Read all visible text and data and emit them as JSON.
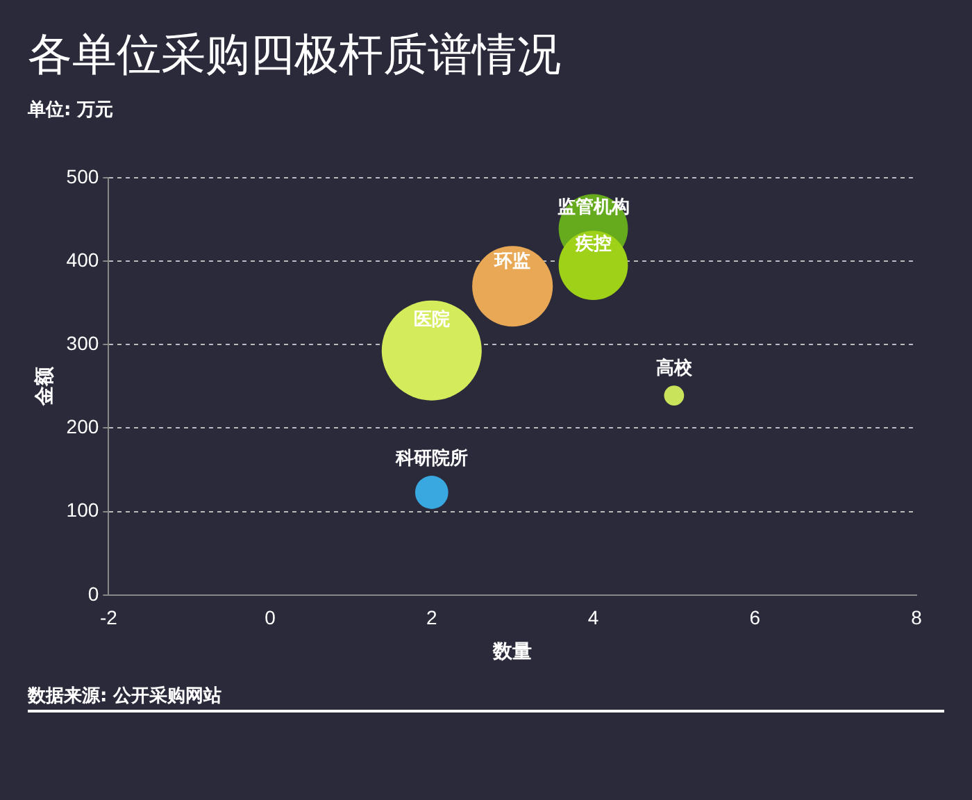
{
  "chart_data": {
    "type": "bubble",
    "title": "各单位采购四极杆质谱情况",
    "subtitle": "单位: 万元",
    "xlabel": "数量",
    "ylabel": "金额",
    "annotations": [
      "数据来源: 公开采购网站"
    ],
    "xlim": [
      -2,
      8
    ],
    "xticks": [
      -2,
      0,
      2,
      4,
      6,
      8
    ],
    "ylim": [
      0,
      500
    ],
    "yticks": [
      0,
      100,
      200,
      300,
      400,
      500
    ],
    "grid": "y",
    "line_style": "dashed",
    "legend": false,
    "series": [
      {
        "name": "医院",
        "color": "#d4ec5c",
        "x": [
          2
        ],
        "values": [
          293
        ],
        "sizes": [
          1
        ]
      },
      {
        "name": "环监",
        "color": "#e8a855",
        "x": [
          3
        ],
        "values": [
          370
        ],
        "sizes": [
          0.65
        ]
      },
      {
        "name": "疾控",
        "color": "#9ed117",
        "x": [
          4
        ],
        "values": [
          395
        ],
        "sizes": [
          0.48
        ]
      },
      {
        "name": "监管机构",
        "color": "#66aa1e",
        "x": [
          4
        ],
        "values": [
          439
        ],
        "sizes": [
          0.48
        ]
      },
      {
        "name": "科研院所",
        "color": "#3aa8e0",
        "x": [
          2
        ],
        "values": [
          123
        ],
        "sizes": [
          0.11
        ]
      },
      {
        "name": "高校",
        "color": "#c9e45a",
        "x": [
          5
        ],
        "values": [
          239
        ],
        "sizes": [
          0.04
        ]
      }
    ]
  }
}
